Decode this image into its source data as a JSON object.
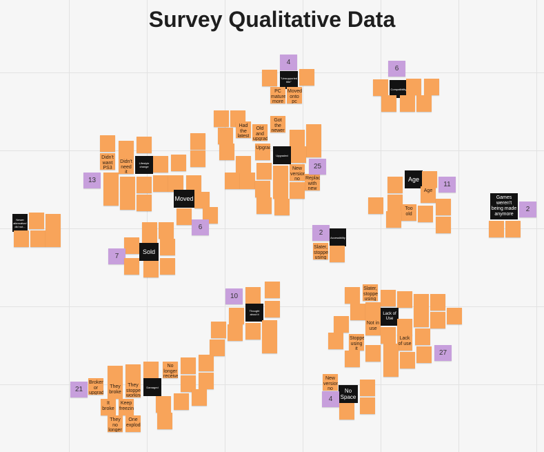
{
  "title": "Survey Qualitative Data",
  "headers": {
    "unsupported": "\"Unsupported title\"",
    "upgrade_top": "Upgraded",
    "upgraded": "Upgraded",
    "lifestyle": "Lifestyle change",
    "moved": "Moved",
    "sold": "Sold",
    "age": "Age",
    "games_not_made": "Games weren't being made anymore",
    "left_header": "Newer alternative/ did not...",
    "lack_of_use": "Lack of Use",
    "no_space": "No Space",
    "damaged": "Damaged",
    "other": "Thought about it",
    "mid": "Accessibility",
    "top_right": "Compatibility"
  },
  "counts": {
    "upgrade_top": "4",
    "top_right": "6",
    "upgraded": "25",
    "lifestyle": "13",
    "moved": "6",
    "sold": "7",
    "mid": "2",
    "age": "11",
    "games": "2",
    "other": "10",
    "lack": "27",
    "damaged": "21",
    "nospace": "4"
  },
  "notes": {
    "ps_mature": "PC mature more",
    "moved_pc": "Moved onto pc gaming",
    "old_upgrade": "Old and upgrade with new",
    "had_latest": "Had the latest consoles some out",
    "got_rid": "Got the newer consoles broken or upgraded",
    "upgraded": "Upgraded",
    "new_version": "New versions, no room",
    "replaced": "Replaced with new devices",
    "didnt_want": "Didn't want PS3",
    "didnt_need": "Didn't need it",
    "too_old": "Too old",
    "age_note": "Age",
    "slater": "Slater, stopped using",
    "not_in_use": "Not in use",
    "lack_use": "Lack of use",
    "stopped": "Stopped using it",
    "broke": "Broken or upgraded",
    "they_broke": "They broke",
    "it_broke": "It broke",
    "keep_freezing": "Keep freezing",
    "no_longer_worked": "They no longer worked",
    "one_exploded": "One exploded",
    "no_longer_received": "No longer received",
    "they_stopped": "They stopped working",
    "new_versions_room": "New versions, no room"
  },
  "colors": {
    "note": "#f8a45a",
    "header": "#121212",
    "count": "#c79fdc",
    "grid": "#e2e2e2",
    "background": "#f6f6f6"
  }
}
